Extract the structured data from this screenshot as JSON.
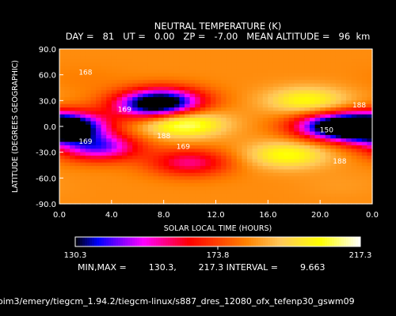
{
  "chart_data": {
    "type": "heatmap",
    "title": "NEUTRAL TEMPERATURE (K)",
    "subtitle": "DAY =   81   UT =   0.00   ZP =   -7.00   MEAN ALTITUDE =   96  km",
    "xlabel": "SOLAR LOCAL TIME (HOURS)",
    "ylabel": "LATITUDE (DEGREES GEOGRAPHIC)",
    "xlim": [
      0,
      24
    ],
    "ylim": [
      -90,
      90
    ],
    "xticks": [
      "0.0",
      "4.0",
      "8.0",
      "12.0",
      "16.0",
      "20.0",
      "0.0"
    ],
    "yticks": [
      "-90.0",
      "-60.0",
      "-30.0",
      "0.0",
      "30.0",
      "60.0",
      "90.0"
    ],
    "colorbar": {
      "min_label": "130.3",
      "mid_label": "173.8",
      "max_label": "217.3",
      "colors": [
        "#ffffff",
        "#000000",
        "#0000ff",
        "#ff00ff",
        "#ff0000",
        "#ff8800",
        "#ffff00",
        "#ffffff"
      ]
    },
    "contour_labels": [
      {
        "text": "168",
        "x": 2.0,
        "y": 60
      },
      {
        "text": "169",
        "x": 5.0,
        "y": 17
      },
      {
        "text": "169",
        "x": 2.0,
        "y": -20
      },
      {
        "text": "169",
        "x": 9.5,
        "y": -26
      },
      {
        "text": "188",
        "x": 8.0,
        "y": -14
      },
      {
        "text": "188",
        "x": 23.0,
        "y": 22
      },
      {
        "text": "188",
        "x": 21.5,
        "y": -43
      },
      {
        "text": "150",
        "x": 20.5,
        "y": -7
      }
    ],
    "features": [
      {
        "lon": 2.0,
        "lat": 55,
        "value": 182
      },
      {
        "lon": 7.0,
        "lat": 22,
        "value": 152
      },
      {
        "lon": 8.0,
        "lat": 30,
        "value": 140
      },
      {
        "lon": 3.0,
        "lat": -24,
        "value": 144
      },
      {
        "lon": 10.0,
        "lat": -42,
        "value": 158
      },
      {
        "lon": 0.5,
        "lat": 3,
        "value": 146
      },
      {
        "lon": 9.5,
        "lat": 3,
        "value": 214
      },
      {
        "lon": 17.5,
        "lat": -33,
        "value": 206
      },
      {
        "lon": 19.0,
        "lat": 30,
        "value": 205
      },
      {
        "lon": 21.0,
        "lat": 0,
        "value": 132
      },
      {
        "lon": 24.0,
        "lat": -5,
        "value": 143
      },
      {
        "lon": 21.5,
        "lat": -68,
        "value": 186
      }
    ],
    "base_value": 184
  },
  "footer": {
    "minmax": "MIN,MAX =        130.3,        217.3 INTERVAL =        9.663",
    "path": "oim3/emery/tiegcm_1.94.2/tiegcm-linux/s887_dres_12080_ofx_tefenp30_gswm09"
  }
}
